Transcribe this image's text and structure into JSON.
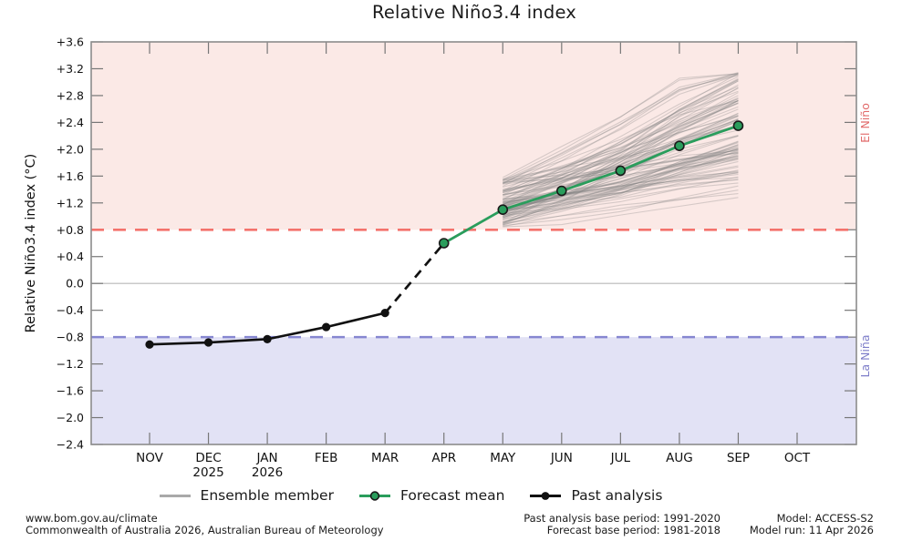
{
  "title": "Relative Niño3.4 index",
  "chart_data": {
    "type": "line",
    "title": "Relative Niño3.4 index",
    "ylabel": "Relative Niño3.4 index (°C)",
    "ylim": [
      -2.4,
      3.6
    ],
    "yticks": [
      {
        "value": 3.6,
        "label": "+3.6"
      },
      {
        "value": 3.2,
        "label": "+3.2"
      },
      {
        "value": 2.8,
        "label": "+2.8"
      },
      {
        "value": 2.4,
        "label": "+2.4"
      },
      {
        "value": 2.0,
        "label": "+2.0"
      },
      {
        "value": 1.6,
        "label": "+1.6"
      },
      {
        "value": 1.2,
        "label": "+1.2"
      },
      {
        "value": 0.8,
        "label": "+0.8"
      },
      {
        "value": 0.4,
        "label": "+0.4"
      },
      {
        "value": 0.0,
        "label": "0.0"
      },
      {
        "value": -0.4,
        "label": "−0.4"
      },
      {
        "value": -0.8,
        "label": "−0.8"
      },
      {
        "value": -1.2,
        "label": "−1.2"
      },
      {
        "value": -1.6,
        "label": "−1.6"
      },
      {
        "value": -2.0,
        "label": "−2.0"
      },
      {
        "value": -2.4,
        "label": "−2.4"
      }
    ],
    "categories": [
      {
        "label": "NOV"
      },
      {
        "label": "DEC",
        "year": "2025"
      },
      {
        "label": "JAN",
        "year": "2026"
      },
      {
        "label": "FEB"
      },
      {
        "label": "MAR"
      },
      {
        "label": "APR"
      },
      {
        "label": "MAY"
      },
      {
        "label": "JUN"
      },
      {
        "label": "JUL"
      },
      {
        "label": "AUG"
      },
      {
        "label": "SEP"
      },
      {
        "label": "OCT"
      }
    ],
    "thresholds": {
      "el_nino": 0.8,
      "la_nina": -0.8,
      "zero": 0.0
    },
    "regions": {
      "el_nino_label": "El Niño",
      "la_nina_label": "La Niña"
    },
    "grid": "zero-line-only",
    "legend_position": "bottom",
    "series": [
      {
        "name": "Past analysis",
        "style": "past",
        "x_start_index": 0,
        "values": [
          -0.91,
          -0.88,
          -0.83,
          -0.65,
          -0.44
        ]
      },
      {
        "name": "Past to forecast transition",
        "style": "dashed-transition",
        "x_start_index": 4,
        "values": [
          -0.44,
          0.6
        ]
      },
      {
        "name": "Forecast mean",
        "style": "forecast",
        "x_start_index": 5,
        "values": [
          0.6,
          1.1,
          1.38,
          1.68,
          2.05,
          2.35
        ]
      },
      {
        "name": "Ensemble member",
        "style": "ensemble",
        "x_start_index": 6,
        "member_count": 99,
        "start_range": [
          0.84,
          1.6
        ],
        "end_range": [
          1.2,
          3.1
        ],
        "mean_increments": [
          0.27,
          0.3,
          0.37,
          0.31
        ]
      }
    ]
  },
  "legend": {
    "items": [
      {
        "label": "Ensemble member",
        "swatch": "gray-line"
      },
      {
        "label": "Forecast mean",
        "swatch": "green-line-circle"
      },
      {
        "label": "Past analysis",
        "swatch": "black-line-dot"
      }
    ]
  },
  "footer": {
    "left_line1": "www.bom.gov.au/climate",
    "left_line2": "Commonwealth of Australia 2026, Australian Bureau of Meteorology",
    "mid_line1": "Past analysis base period: 1991-2020",
    "mid_line2": "Forecast base period: 1981-2018",
    "right_line1": "Model: ACCESS-S2",
    "right_line2": "Model run: 11 Apr 2026"
  },
  "colors": {
    "el_nino_fill": "#fbe9e6",
    "la_nina_fill": "#e2e2f5",
    "el_nino_line": "#f4726c",
    "la_nina_line": "#8687d1",
    "el_nino_text": "#e26b6b",
    "la_nina_text": "#7d7dc9",
    "forecast_green": "#2a9d5c",
    "past_black": "#111111",
    "ensemble_gray": "rgba(128,128,128,0.30)",
    "ensemble_gray_solid": "#a9a9a9",
    "zero_line": "#b8b8b8",
    "frame": "#8c8c8c",
    "tick": "#777777",
    "text": "#111111"
  }
}
